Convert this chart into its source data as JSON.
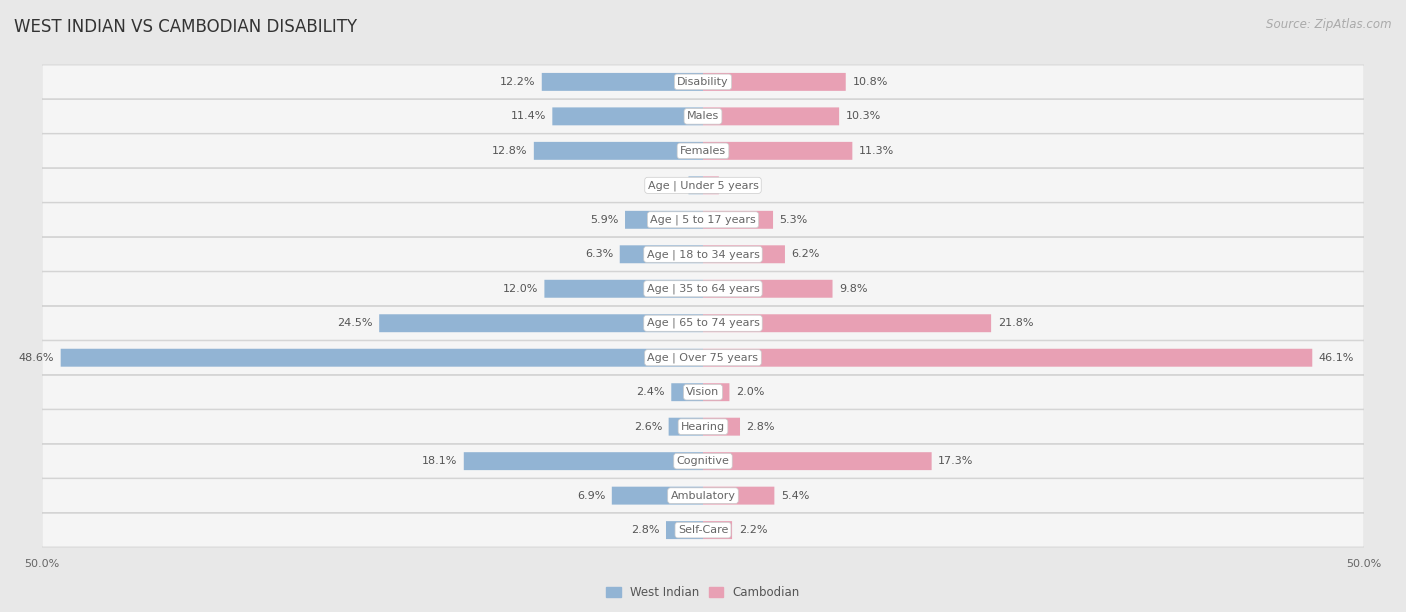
{
  "title": "WEST INDIAN VS CAMBODIAN DISABILITY",
  "source": "Source: ZipAtlas.com",
  "categories": [
    "Disability",
    "Males",
    "Females",
    "Age | Under 5 years",
    "Age | 5 to 17 years",
    "Age | 18 to 34 years",
    "Age | 35 to 64 years",
    "Age | 65 to 74 years",
    "Age | Over 75 years",
    "Vision",
    "Hearing",
    "Cognitive",
    "Ambulatory",
    "Self-Care"
  ],
  "west_indian": [
    12.2,
    11.4,
    12.8,
    1.1,
    5.9,
    6.3,
    12.0,
    24.5,
    48.6,
    2.4,
    2.6,
    18.1,
    6.9,
    2.8
  ],
  "cambodian": [
    10.8,
    10.3,
    11.3,
    1.2,
    5.3,
    6.2,
    9.8,
    21.8,
    46.1,
    2.0,
    2.8,
    17.3,
    5.4,
    2.2
  ],
  "west_indian_color": "#92b4d4",
  "cambodian_color": "#e8a0b4",
  "west_indian_label": "West Indian",
  "cambodian_label": "Cambodian",
  "axis_max": 50.0,
  "background_color": "#e8e8e8",
  "row_bg_color": "#f5f5f5",
  "row_border_color": "#cccccc",
  "title_fontsize": 12,
  "source_fontsize": 8.5,
  "label_fontsize": 8,
  "value_fontsize": 8,
  "tick_fontsize": 8,
  "legend_fontsize": 8.5,
  "label_text_color": "#666666",
  "value_text_color": "#555555"
}
